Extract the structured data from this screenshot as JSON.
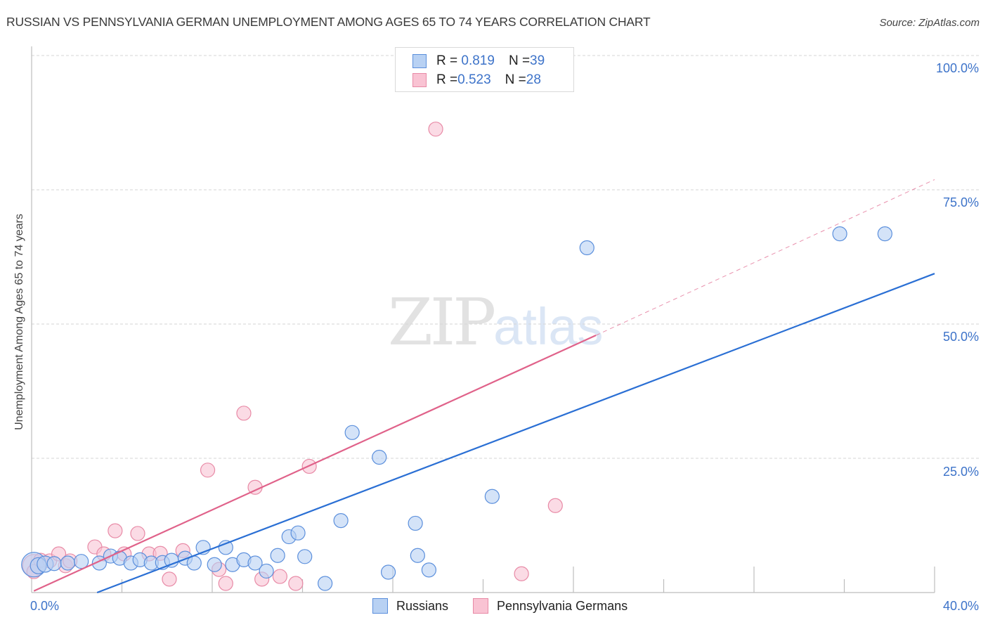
{
  "header": {
    "title": "RUSSIAN VS PENNSYLVANIA GERMAN UNEMPLOYMENT AMONG AGES 65 TO 74 YEARS CORRELATION CHART",
    "source": "Source: ZipAtlas.com"
  },
  "watermark": {
    "zip": "ZIP",
    "atlas": "atlas"
  },
  "axes": {
    "ylabel": "Unemployment Among Ages 65 to 74 years",
    "y_ticks": [
      "100.0%",
      "75.0%",
      "50.0%",
      "25.0%"
    ],
    "x_min_label": "0.0%",
    "x_max_label": "40.0%"
  },
  "legend_box": {
    "rows": [
      {
        "r_label": "R = ",
        "r_value": "0.819",
        "n_label": "N = ",
        "n_value": "39"
      },
      {
        "r_label": "R = ",
        "r_value": "0.523",
        "n_label": "N = ",
        "n_value": "28"
      }
    ]
  },
  "bottom_legend": [
    {
      "label": "Russians"
    },
    {
      "label": "Pennsylvania Germans"
    }
  ],
  "colors": {
    "russians_fill": "#b8d1f3",
    "russians_stroke": "#5b8fdc",
    "russians_line": "#2a6fd4",
    "penn_fill": "#f9c3d3",
    "penn_stroke": "#e88aa6",
    "penn_line": "#e0628a",
    "tick_label": "#3d73c9"
  },
  "chart_data": {
    "type": "scatter",
    "title": "RUSSIAN VS PENNSYLVANIA GERMAN UNEMPLOYMENT AMONG AGES 65 TO 74 YEARS CORRELATION CHART",
    "xlabel": "",
    "ylabel": "Unemployment Among Ages 65 to 74 years",
    "xlim": [
      0,
      40
    ],
    "ylim": [
      0,
      100
    ],
    "x_tick_labels": [
      "0.0%",
      "40.0%"
    ],
    "y_tick_labels": [
      "25.0%",
      "50.0%",
      "75.0%",
      "100.0%"
    ],
    "grid": "horizontal dashed at 25/50/75/100",
    "legend_position": "top-center (stats) and bottom-center (series)",
    "series": [
      {
        "name": "Russians",
        "r": 0.819,
        "n": 39,
        "points": [
          [
            0.1,
            5.2,
            22
          ],
          [
            0.3,
            5.0,
            14
          ],
          [
            0.6,
            5.3,
            14
          ],
          [
            1.0,
            5.4,
            12
          ],
          [
            1.6,
            5.5,
            12
          ],
          [
            2.2,
            5.8,
            12
          ],
          [
            3.0,
            5.5,
            12
          ],
          [
            3.5,
            6.8,
            12
          ],
          [
            3.9,
            6.4,
            12
          ],
          [
            4.4,
            5.5,
            12
          ],
          [
            4.8,
            6.1,
            12
          ],
          [
            5.3,
            5.5,
            12
          ],
          [
            5.8,
            5.6,
            12
          ],
          [
            6.2,
            6.0,
            12
          ],
          [
            6.8,
            6.4,
            12
          ],
          [
            7.2,
            5.5,
            12
          ],
          [
            7.6,
            8.4,
            12
          ],
          [
            8.1,
            5.2,
            12
          ],
          [
            8.6,
            8.4,
            12
          ],
          [
            8.9,
            5.2,
            12
          ],
          [
            9.4,
            6.1,
            12
          ],
          [
            9.9,
            5.5,
            12
          ],
          [
            10.4,
            4.0,
            12
          ],
          [
            10.9,
            6.9,
            12
          ],
          [
            11.4,
            10.4,
            12
          ],
          [
            11.8,
            11.1,
            12
          ],
          [
            12.1,
            6.7,
            12
          ],
          [
            13.0,
            1.7,
            12
          ],
          [
            13.7,
            13.4,
            12
          ],
          [
            14.2,
            29.8,
            12
          ],
          [
            15.4,
            25.2,
            12
          ],
          [
            15.8,
            3.8,
            12
          ],
          [
            17.0,
            12.9,
            12
          ],
          [
            17.1,
            6.9,
            12
          ],
          [
            17.6,
            4.2,
            12
          ],
          [
            20.4,
            17.9,
            12
          ],
          [
            24.6,
            64.2,
            12
          ],
          [
            35.8,
            66.8,
            12
          ],
          [
            37.8,
            66.8,
            12
          ]
        ],
        "trendline": {
          "x0": 2.9,
          "y0": 0.0,
          "x1": 40.0,
          "y1": 59.4
        }
      },
      {
        "name": "Pennsylvania Germans",
        "r": 0.523,
        "n": 28,
        "points": [
          [
            0.1,
            5.0,
            20
          ],
          [
            0.1,
            3.9,
            12
          ],
          [
            0.4,
            6.0,
            12
          ],
          [
            0.8,
            5.9,
            12
          ],
          [
            1.2,
            7.2,
            12
          ],
          [
            1.5,
            5.0,
            12
          ],
          [
            1.7,
            5.9,
            12
          ],
          [
            2.8,
            8.5,
            12
          ],
          [
            3.2,
            7.2,
            12
          ],
          [
            3.7,
            11.5,
            12
          ],
          [
            4.1,
            7.2,
            12
          ],
          [
            4.7,
            11.0,
            12
          ],
          [
            5.2,
            7.2,
            12
          ],
          [
            5.7,
            7.3,
            12
          ],
          [
            6.1,
            2.5,
            12
          ],
          [
            6.7,
            7.8,
            12
          ],
          [
            7.8,
            22.8,
            12
          ],
          [
            8.3,
            4.3,
            12
          ],
          [
            8.6,
            1.7,
            12
          ],
          [
            9.4,
            33.4,
            12
          ],
          [
            9.9,
            19.6,
            12
          ],
          [
            10.2,
            2.5,
            12
          ],
          [
            11.0,
            3.0,
            12
          ],
          [
            11.7,
            1.7,
            12
          ],
          [
            12.3,
            23.5,
            12
          ],
          [
            17.9,
            86.3,
            12
          ],
          [
            21.7,
            3.5,
            12
          ],
          [
            23.2,
            16.2,
            12
          ]
        ],
        "trendline": {
          "x0": 0.1,
          "y0": 0.3,
          "x1": 25.0,
          "y1": 47.9,
          "dashed_to_x": 40.0,
          "dashed_to_y": 76.9
        }
      }
    ]
  }
}
